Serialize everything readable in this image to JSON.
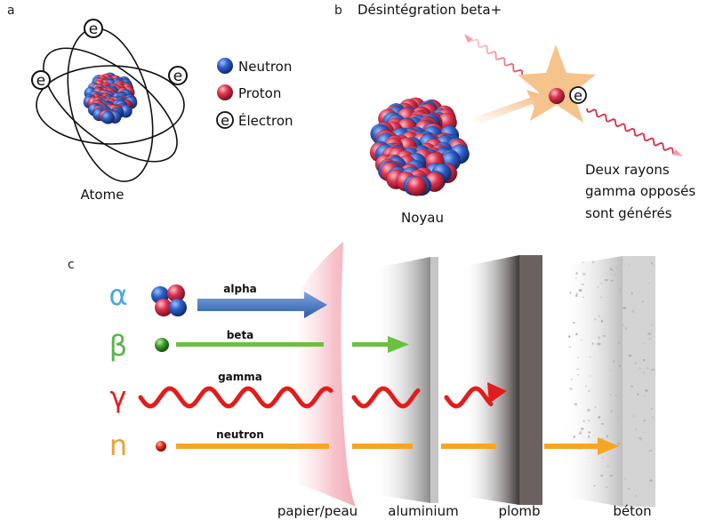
{
  "panel_a": {
    "label": "a",
    "electron_symbol": "e",
    "legend": [
      "Neutron",
      "Proton",
      "Électron"
    ],
    "caption": "Atome"
  },
  "panel_b": {
    "label": "b",
    "title": "Désintégration beta+",
    "nucleus_caption": "Noyau",
    "gamma_note": [
      "Deux rayons",
      "gamma opposés",
      "sont générés"
    ],
    "positron_symbol": "e"
  },
  "panel_c": {
    "label": "c",
    "radiations": [
      {
        "symbol": "α",
        "name": "alpha",
        "color": "#4aa8d8"
      },
      {
        "symbol": "β",
        "name": "beta",
        "color": "#5ab54a"
      },
      {
        "symbol": "γ",
        "name": "gamma",
        "color": "#e02020"
      },
      {
        "symbol": "n",
        "name": "neutron",
        "color": "#f0a030"
      }
    ],
    "barriers": [
      "papier/peau",
      "aluminium",
      "plomb",
      "béton"
    ]
  },
  "colors": {
    "neutron": "#2c55b8",
    "proton": "#d8304a",
    "alpha_arrow": "#3c6cb0",
    "beta_arrow": "#6cc040",
    "gamma_wave": "#e21c1c",
    "neutron_arrow": "#f5a623",
    "star": "#f4c48c",
    "paper": "#f7c8cf",
    "lead": "#6c6260",
    "concrete": "#d6d6d6"
  },
  "icons": [
    "electron-icon",
    "nucleus-icon",
    "star-burst-icon",
    "gamma-wave-icon",
    "arrow-icon"
  ]
}
